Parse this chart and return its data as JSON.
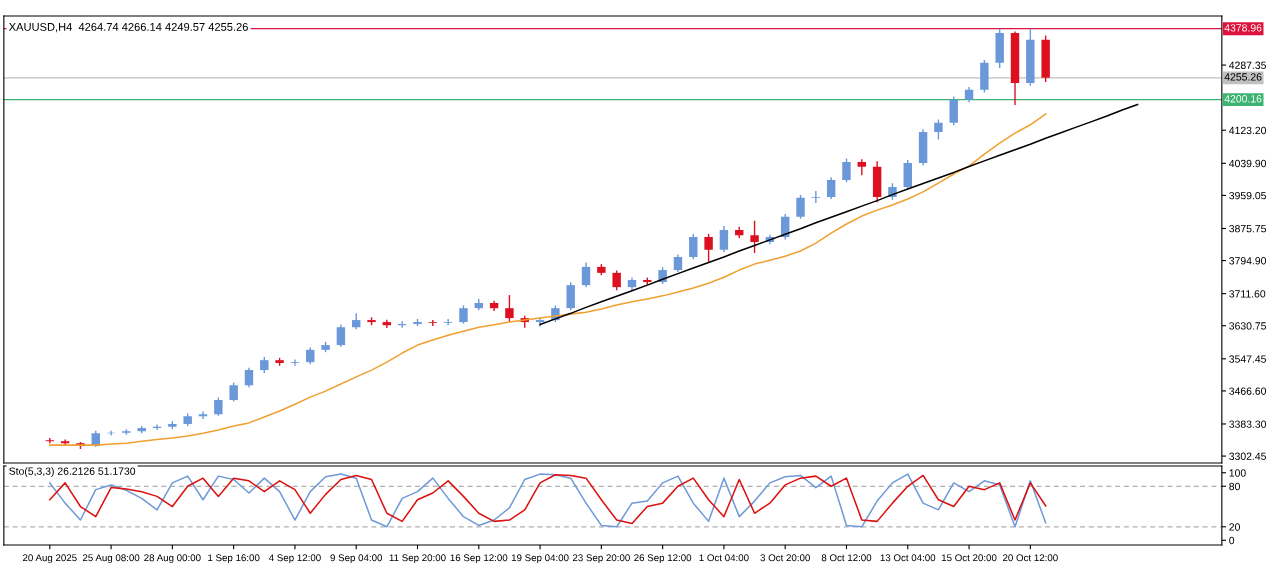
{
  "chart_data": [
    {
      "type": "candlestick",
      "title": "XAUUSD,H4  4264.74 4266.14 4249.57 4255.26",
      "categories": [
        null,
        null,
        null,
        null,
        null,
        null,
        null,
        null,
        null,
        null,
        null,
        null,
        null,
        null,
        null,
        null,
        null,
        null,
        null,
        null,
        null,
        null,
        null,
        null,
        null,
        null,
        null,
        null,
        null,
        null,
        null,
        null,
        null,
        null,
        null,
        null,
        null,
        null,
        null,
        null,
        null,
        null,
        null,
        null,
        null,
        null,
        null,
        null,
        null,
        null,
        null,
        null,
        null,
        null,
        null,
        null,
        null,
        null,
        null,
        null,
        null,
        null,
        null,
        null,
        null,
        null,
        null,
        null,
        null,
        null,
        null,
        null,
        null,
        null,
        null,
        null,
        null
      ],
      "ohlc": [
        [
          3342,
          3348,
          3335,
          3340
        ],
        [
          3340,
          3344,
          3330,
          3335
        ],
        [
          3335,
          3338,
          3320,
          3328
        ],
        [
          3328,
          3366,
          3325,
          3360
        ],
        [
          3360,
          3366,
          3354,
          3361
        ],
        [
          3361,
          3370,
          3356,
          3365
        ],
        [
          3365,
          3378,
          3360,
          3373
        ],
        [
          3373,
          3382,
          3368,
          3376
        ],
        [
          3376,
          3390,
          3370,
          3383
        ],
        [
          3383,
          3410,
          3378,
          3403
        ],
        [
          3403,
          3415,
          3396,
          3408
        ],
        [
          3408,
          3450,
          3404,
          3444
        ],
        [
          3444,
          3488,
          3440,
          3481
        ],
        [
          3481,
          3525,
          3476,
          3519
        ],
        [
          3519,
          3552,
          3512,
          3544
        ],
        [
          3544,
          3550,
          3530,
          3537
        ],
        [
          3537,
          3546,
          3530,
          3539
        ],
        [
          3539,
          3576,
          3534,
          3570
        ],
        [
          3570,
          3590,
          3564,
          3582
        ],
        [
          3582,
          3634,
          3578,
          3627
        ],
        [
          3627,
          3662,
          3622,
          3645
        ],
        [
          3645,
          3652,
          3632,
          3640
        ],
        [
          3640,
          3646,
          3625,
          3632
        ],
        [
          3632,
          3642,
          3626,
          3635
        ],
        [
          3635,
          3648,
          3630,
          3640
        ],
        [
          3640,
          3645,
          3630,
          3638
        ],
        [
          3638,
          3648,
          3632,
          3640
        ],
        [
          3640,
          3682,
          3636,
          3675
        ],
        [
          3675,
          3698,
          3670,
          3688
        ],
        [
          3688,
          3694,
          3668,
          3675
        ],
        [
          3675,
          3708,
          3640,
          3650
        ],
        [
          3650,
          3656,
          3626,
          3640
        ],
        [
          3640,
          3652,
          3628,
          3645
        ],
        [
          3645,
          3682,
          3640,
          3675
        ],
        [
          3675,
          3740,
          3670,
          3733
        ],
        [
          3733,
          3790,
          3728,
          3779
        ],
        [
          3779,
          3786,
          3758,
          3764
        ],
        [
          3764,
          3770,
          3720,
          3728
        ],
        [
          3728,
          3752,
          3718,
          3746
        ],
        [
          3746,
          3752,
          3734,
          3741
        ],
        [
          3741,
          3778,
          3736,
          3771
        ],
        [
          3771,
          3810,
          3766,
          3804
        ],
        [
          3804,
          3862,
          3798,
          3854
        ],
        [
          3854,
          3862,
          3789,
          3822
        ],
        [
          3822,
          3882,
          3816,
          3872
        ],
        [
          3872,
          3880,
          3852,
          3859
        ],
        [
          3859,
          3895,
          3814,
          3842
        ],
        [
          3842,
          3860,
          3836,
          3854
        ],
        [
          3854,
          3912,
          3848,
          3905
        ],
        [
          3905,
          3960,
          3900,
          3953
        ],
        [
          3953,
          3970,
          3940,
          3955
        ],
        [
          3955,
          4005,
          3950,
          3998
        ],
        [
          3998,
          4052,
          3992,
          4043
        ],
        [
          4043,
          4050,
          4010,
          4031
        ],
        [
          4031,
          4045,
          3942,
          3955
        ],
        [
          3955,
          3990,
          3948,
          3980
        ],
        [
          3980,
          4048,
          3975,
          4041
        ],
        [
          4041,
          4126,
          4035,
          4119
        ],
        [
          4119,
          4150,
          4100,
          4142
        ],
        [
          4142,
          4208,
          4136,
          4200
        ],
        [
          4200,
          4232,
          4194,
          4225
        ],
        [
          4225,
          4300,
          4218,
          4293
        ],
        [
          4293,
          4378.96,
          4280,
          4368
        ],
        [
          4368,
          4372,
          4187,
          4242
        ],
        [
          4242,
          4378.96,
          4235,
          4351
        ],
        [
          4351,
          4362,
          4245,
          4255.26
        ],
        null,
        null,
        null,
        null,
        null,
        null,
        null,
        null,
        null,
        null,
        null
      ],
      "colors": [
        "#dd1020",
        "#dd1020",
        "#dd1020",
        "#6a98d8",
        "#6a98d8",
        "#6a98d8",
        "#6a98d8",
        "#6a98d8",
        "#6a98d8",
        "#6a98d8",
        "#6a98d8",
        "#6a98d8",
        "#6a98d8",
        "#6a98d8",
        "#6a98d8",
        "#dd1020",
        "#6a98d8",
        "#6a98d8",
        "#6a98d8",
        "#6a98d8",
        "#6a98d8",
        "#dd1020",
        "#dd1020",
        "#6a98d8",
        "#6a98d8",
        "#dd1020",
        "#6a98d8",
        "#6a98d8",
        "#6a98d8",
        "#dd1020",
        "#dd1020",
        "#dd1020",
        "#6a98d8",
        "#6a98d8",
        "#6a98d8",
        "#6a98d8",
        "#dd1020",
        "#dd1020",
        "#6a98d8",
        "#dd1020",
        "#6a98d8",
        "#6a98d8",
        "#6a98d8",
        "#dd1020",
        "#6a98d8",
        "#dd1020",
        "#dd1020",
        "#6a98d8",
        "#6a98d8",
        "#6a98d8",
        "#6a98d8",
        "#6a98d8",
        "#6a98d8",
        "#dd1020",
        "#dd1020",
        "#6a98d8",
        "#6a98d8",
        "#6a98d8",
        "#6a98d8",
        "#6a98d8",
        "#6a98d8",
        "#6a98d8",
        "#6a98d8",
        "#dd1020",
        "#6a98d8",
        "#dd1020",
        null,
        null,
        null,
        null,
        null,
        null,
        null,
        null,
        null,
        null,
        null
      ],
      "series": [
        {
          "type": "line",
          "color": "#f0a030",
          "values": [
            3330,
            3330,
            3330,
            3330,
            3333,
            3335,
            3340,
            3344,
            3348,
            3353,
            3360,
            3368,
            3378,
            3386,
            3401,
            3416,
            3433,
            3451,
            3466,
            3484,
            3502,
            3519,
            3539,
            3562,
            3582,
            3595,
            3607,
            3617,
            3627,
            3633,
            3640,
            3645,
            3650,
            3655,
            3660,
            3665,
            3673,
            3683,
            3691,
            3698,
            3706,
            3716,
            3726,
            3738,
            3753,
            3771,
            3786,
            3796,
            3806,
            3819,
            3839,
            3864,
            3887,
            3907,
            3922,
            3935,
            3950,
            3968,
            3990,
            4013,
            4033,
            4063,
            4091,
            4116,
            4137,
            4164,
            null,
            null,
            null,
            null,
            null,
            null,
            null,
            null,
            null,
            null,
            null
          ]
        },
        {
          "type": "line",
          "color": "#000000",
          "values": [
            null,
            null,
            null,
            null,
            null,
            null,
            null,
            null,
            null,
            null,
            null,
            null,
            null,
            null,
            null,
            null,
            null,
            null,
            null,
            null,
            null,
            null,
            null,
            null,
            null,
            null,
            null,
            null,
            null,
            null,
            null,
            null,
            3634,
            3648,
            3662,
            3677,
            3691,
            3705,
            3719,
            3733,
            3748,
            3762,
            3776,
            3790,
            3804,
            3819,
            3833,
            3847,
            3861,
            3875,
            3890,
            3904,
            3918,
            3932,
            3946,
            3961,
            3975,
            3989,
            4003,
            4017,
            4032,
            4046,
            4060,
            4074,
            4088,
            4103,
            4117,
            4131,
            4145,
            4159,
            4174,
            4188,
            null,
            null,
            null,
            null,
            null
          ]
        }
      ],
      "ylim": [
        3285,
        4411
      ],
      "yticks": [
        {
          "value": 3302.45,
          "label": "3302.45"
        },
        {
          "value": 3383.3,
          "label": "3383.30"
        },
        {
          "value": 3466.6,
          "label": "3466.60"
        },
        {
          "value": 3547.45,
          "label": "3547.45"
        },
        {
          "value": 3630.75,
          "label": "3630.75"
        },
        {
          "value": 3711.6,
          "label": "3711.60"
        },
        {
          "value": 3794.9,
          "label": "3794.90"
        },
        {
          "value": 3875.75,
          "label": "3875.75"
        },
        {
          "value": 3959.05,
          "label": "3959.05"
        },
        {
          "value": 4039.9,
          "label": "4039.90"
        },
        {
          "value": 4123.2,
          "label": "4123.20"
        },
        {
          "value": 4287.35,
          "label": "4287.35"
        }
      ],
      "ref_lines": [
        {
          "axis": "y",
          "value": 4378.96,
          "label": "4378.96",
          "color": "#dc143c"
        },
        {
          "axis": "y",
          "value": 4255.26,
          "label": "4255.26",
          "color": "#c0c0c0"
        },
        {
          "axis": "y",
          "value": 4200.16,
          "label": "4200.16",
          "color": "#3cb371"
        }
      ],
      "tick_labels": "y"
    },
    {
      "type": "line",
      "title": "Sto(5,3,3) 26.2126 51.1730",
      "categories": [
        "20 Aug 2025",
        null,
        null,
        null,
        "25 Aug 08:00",
        null,
        null,
        null,
        "28 Aug 00:00",
        null,
        null,
        null,
        "1 Sep 16:00",
        null,
        null,
        null,
        "4 Sep 12:00",
        null,
        null,
        null,
        "9 Sep 04:00",
        null,
        null,
        null,
        "11 Sep 20:00",
        null,
        null,
        null,
        "16 Sep 12:00",
        null,
        null,
        null,
        "19 Sep 04:00",
        null,
        null,
        null,
        "23 Sep 20:00",
        null,
        null,
        null,
        "26 Sep 12:00",
        null,
        null,
        null,
        "1 Oct 04:00",
        null,
        null,
        null,
        "3 Oct 20:00",
        null,
        null,
        null,
        "8 Oct 12:00",
        null,
        null,
        null,
        "13 Oct 04:00",
        null,
        null,
        null,
        "15 Oct 20:00",
        null,
        null,
        null,
        "20 Oct 12:00",
        null,
        null,
        null,
        null,
        null,
        null,
        null,
        null,
        null,
        null,
        null,
        null
      ],
      "series": [
        {
          "color": "#6f9ad8",
          "values": [
            85,
            55,
            30,
            75,
            82,
            74,
            62,
            45,
            85,
            95,
            60,
            95,
            90,
            70,
            92,
            72,
            30,
            72,
            94,
            98,
            92,
            30,
            20,
            62,
            72,
            92,
            62,
            35,
            22,
            30,
            48,
            90,
            98,
            97,
            92,
            55,
            22,
            20,
            55,
            58,
            85,
            95,
            55,
            28,
            92,
            35,
            58,
            85,
            94,
            96,
            78,
            95,
            22,
            20,
            58,
            85,
            98,
            55,
            45,
            85,
            72,
            88,
            82,
            20,
            88,
            26,
            null,
            null,
            null,
            null,
            null,
            null,
            null,
            null,
            null,
            null,
            null
          ]
        },
        {
          "color": "#dd1010",
          "values": [
            60,
            85,
            50,
            35,
            78,
            76,
            72,
            65,
            50,
            80,
            92,
            65,
            92,
            88,
            72,
            88,
            75,
            40,
            68,
            90,
            96,
            90,
            40,
            28,
            60,
            70,
            88,
            65,
            40,
            28,
            30,
            45,
            85,
            97,
            96,
            92,
            60,
            30,
            25,
            50,
            55,
            80,
            92,
            60,
            35,
            90,
            40,
            55,
            82,
            92,
            95,
            80,
            92,
            30,
            28,
            55,
            80,
            96,
            60,
            50,
            80,
            75,
            85,
            30,
            85,
            51,
            null,
            null,
            null,
            null,
            null,
            null,
            null,
            null,
            null,
            null,
            null
          ]
        }
      ],
      "ylim": [
        -7,
        110
      ],
      "yticks": [
        0,
        20,
        80,
        100
      ],
      "ref_lines": [
        {
          "axis": "y",
          "value": 20,
          "color": "#b0b0b0",
          "line_style": "dashed"
        },
        {
          "axis": "y",
          "value": 80,
          "color": "#b0b0b0",
          "line_style": "dashed"
        }
      ]
    }
  ]
}
